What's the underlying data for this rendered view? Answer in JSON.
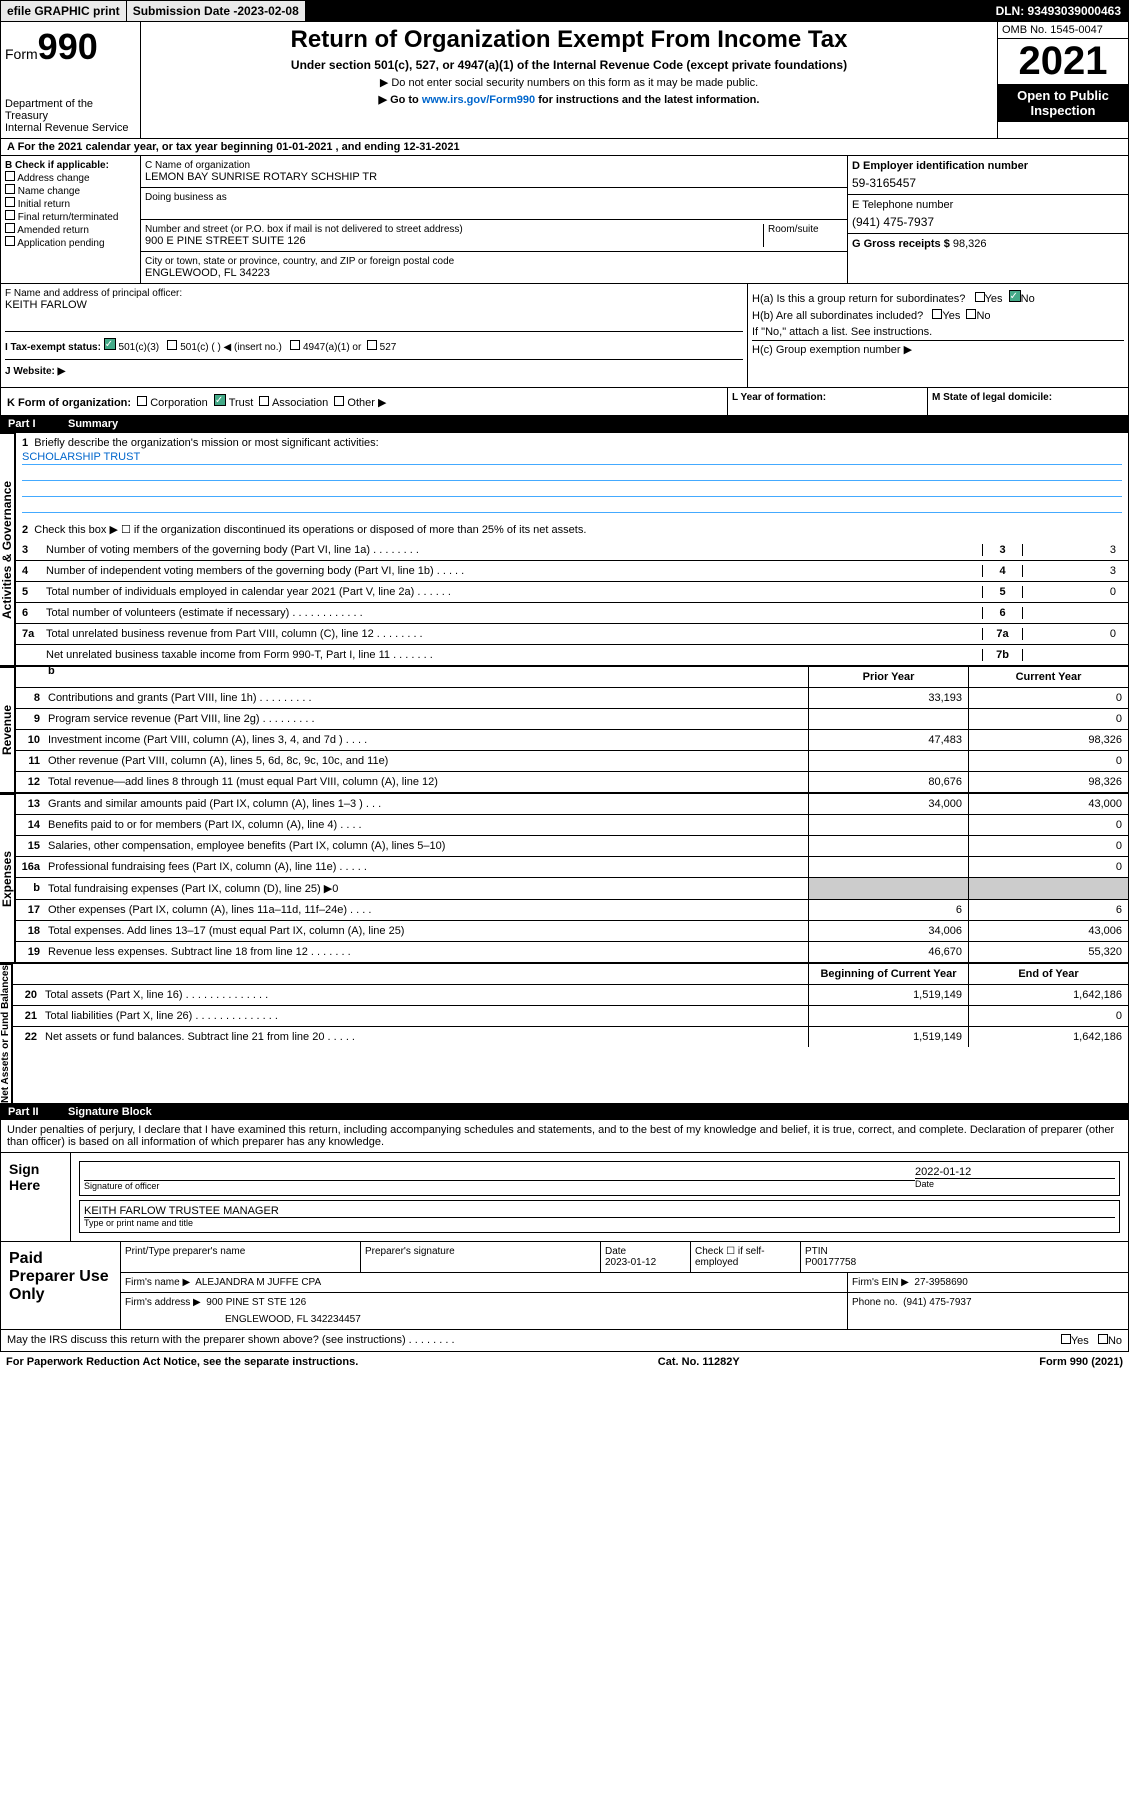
{
  "topbar": {
    "efile": "efile GRAPHIC print",
    "subdate_label": "Submission Date - ",
    "subdate": "2023-02-08",
    "dln": "DLN: 93493039000463"
  },
  "header": {
    "form_prefix": "Form",
    "form_num": "990",
    "dept": "Department of the Treasury",
    "irs": "Internal Revenue Service",
    "title": "Return of Organization Exempt From Income Tax",
    "sub": "Under section 501(c), 527, or 4947(a)(1) of the Internal Revenue Code (except private foundations)",
    "note1": "▶ Do not enter social security numbers on this form as it may be made public.",
    "note2_pre": "▶ Go to ",
    "note2_link": "www.irs.gov/Form990",
    "note2_post": " for instructions and the latest information.",
    "omb": "OMB No. 1545-0047",
    "year": "2021",
    "open": "Open to Public Inspection"
  },
  "a": {
    "text": "A For the 2021 calendar year, or tax year beginning 01-01-2021     , and ending 12-31-2021"
  },
  "b": {
    "label": "B Check if applicable:",
    "items": [
      "Address change",
      "Name change",
      "Initial return",
      "Final return/terminated",
      "Amended return",
      "Application pending"
    ]
  },
  "c": {
    "name_lbl": "C Name of organization",
    "name": "LEMON BAY SUNRISE ROTARY SCHSHIP TR",
    "dba_lbl": "Doing business as",
    "street_lbl": "Number and street (or P.O. box if mail is not delivered to street address)",
    "street": "900 E PINE STREET SUITE 126",
    "room_lbl": "Room/suite",
    "city_lbl": "City or town, state or province, country, and ZIP or foreign postal code",
    "city": "ENGLEWOOD, FL  34223"
  },
  "d": {
    "lbl": "D Employer identification number",
    "val": "59-3165457"
  },
  "e": {
    "lbl": "E Telephone number",
    "val": "(941) 475-7937"
  },
  "g": {
    "lbl": "G Gross receipts $ ",
    "val": "98,326"
  },
  "f": {
    "lbl": "F  Name and address of principal officer:",
    "val": "KEITH FARLOW"
  },
  "h": {
    "ha": "H(a)  Is this a group return for subordinates?",
    "hb": "H(b)  Are all subordinates included?",
    "hb_note": "If \"No,\" attach a list. See instructions.",
    "hc": "H(c)  Group exemption number ▶",
    "yes": "Yes",
    "no": "No"
  },
  "i": {
    "lbl": "I    Tax-exempt status:",
    "o1": "501(c)(3)",
    "o2": "501(c) (    ) ◀ (insert no.)",
    "o3": "4947(a)(1) or",
    "o4": "527"
  },
  "j": {
    "lbl": "J    Website: ▶"
  },
  "k": {
    "lbl": "K Form of organization:",
    "o1": "Corporation",
    "o2": "Trust",
    "o3": "Association",
    "o4": "Other ▶"
  },
  "l": "L Year of formation:",
  "m": "M State of legal domicile:",
  "part1": {
    "num": "Part I",
    "title": "Summary"
  },
  "summary": {
    "q1": "Briefly describe the organization's mission or most significant activities:",
    "mission": "SCHOLARSHIP TRUST",
    "q2": "Check this box ▶ ☐  if the organization discontinued its operations or disposed of more than 25% of its net assets.",
    "rows": [
      {
        "n": "3",
        "t": "Number of voting members of the governing body (Part VI, line 1a)   .    .    .    .    .    .    .    .",
        "b": "3",
        "v": "3"
      },
      {
        "n": "4",
        "t": "Number of independent voting members of the governing body (Part VI, line 1b)   .    .    .    .    .",
        "b": "4",
        "v": "3"
      },
      {
        "n": "5",
        "t": "Total number of individuals employed in calendar year 2021 (Part V, line 2a)   .    .    .    .    .    .",
        "b": "5",
        "v": "0"
      },
      {
        "n": "6",
        "t": "Total number of volunteers (estimate if necessary)   .    .    .    .    .    .    .    .    .    .    .    .",
        "b": "6",
        "v": ""
      },
      {
        "n": "7a",
        "t": "Total unrelated business revenue from Part VIII, column (C), line 12   .    .    .    .    .    .    .    .",
        "b": "7a",
        "v": "0"
      },
      {
        "n": "",
        "t": "Net unrelated business taxable income from Form 990-T, Part I, line 11   .    .    .    .    .    .    .",
        "b": "7b",
        "v": ""
      }
    ]
  },
  "headers": {
    "prior": "Prior Year",
    "current": "Current Year",
    "begin": "Beginning of Current Year",
    "end": "End of Year"
  },
  "revenue": [
    {
      "n": "8",
      "t": "Contributions and grants (Part VIII, line 1h)   .    .    .    .    .    .    .    .    .",
      "p": "33,193",
      "c": "0"
    },
    {
      "n": "9",
      "t": "Program service revenue (Part VIII, line 2g)   .    .    .    .    .    .    .    .    .",
      "p": "",
      "c": "0"
    },
    {
      "n": "10",
      "t": "Investment income (Part VIII, column (A), lines 3, 4, and 7d )    .    .    .    .",
      "p": "47,483",
      "c": "98,326"
    },
    {
      "n": "11",
      "t": "Other revenue (Part VIII, column (A), lines 5, 6d, 8c, 9c, 10c, and 11e)",
      "p": "",
      "c": "0"
    },
    {
      "n": "12",
      "t": "Total revenue—add lines 8 through 11 (must equal Part VIII, column (A), line 12)",
      "p": "80,676",
      "c": "98,326"
    }
  ],
  "expenses": [
    {
      "n": "13",
      "t": "Grants and similar amounts paid (Part IX, column (A), lines 1–3 )   .    .    .",
      "p": "34,000",
      "c": "43,000"
    },
    {
      "n": "14",
      "t": "Benefits paid to or for members (Part IX, column (A), line 4)   .    .    .    .",
      "p": "",
      "c": "0"
    },
    {
      "n": "15",
      "t": "Salaries, other compensation, employee benefits (Part IX, column (A), lines 5–10)",
      "p": "",
      "c": "0"
    },
    {
      "n": "16a",
      "t": "Professional fundraising fees (Part IX, column (A), line 11e)   .    .    .    .    .",
      "p": "",
      "c": "0"
    },
    {
      "n": "b",
      "t": "Total fundraising expenses (Part IX, column (D), line 25) ▶0",
      "p": "",
      "c": "",
      "gray": true
    },
    {
      "n": "17",
      "t": "Other expenses (Part IX, column (A), lines 11a–11d, 11f–24e)   .    .    .    .",
      "p": "6",
      "c": "6"
    },
    {
      "n": "18",
      "t": "Total expenses. Add lines 13–17 (must equal Part IX, column (A), line 25)",
      "p": "34,006",
      "c": "43,006"
    },
    {
      "n": "19",
      "t": "Revenue less expenses. Subtract line 18 from line 12   .    .    .    .    .    .    .",
      "p": "46,670",
      "c": "55,320"
    }
  ],
  "netassets": [
    {
      "n": "20",
      "t": "Total assets (Part X, line 16)   .    .    .    .    .    .    .    .    .    .    .    .    .    .",
      "p": "1,519,149",
      "c": "1,642,186"
    },
    {
      "n": "21",
      "t": "Total liabilities (Part X, line 26)   .    .    .    .    .    .    .    .    .    .    .    .    .    .",
      "p": "",
      "c": "0"
    },
    {
      "n": "22",
      "t": "Net assets or fund balances. Subtract line 21 from line 20   .    .    .    .    .",
      "p": "1,519,149",
      "c": "1,642,186"
    }
  ],
  "part2": {
    "num": "Part II",
    "title": "Signature Block"
  },
  "declare": "Under penalties of perjury, I declare that I have examined this return, including accompanying schedules and statements, and to the best of my knowledge and belief, it is true, correct, and complete. Declaration of preparer (other than officer) is based on all information of which preparer has any knowledge.",
  "sign": {
    "lbl": "Sign Here",
    "sig_lbl": "Signature of officer",
    "date_lbl": "Date",
    "date": "2022-01-12",
    "name": "KEITH FARLOW  TRUSTEE MANAGER",
    "name_lbl": "Type or print name and title"
  },
  "paid": {
    "lbl": "Paid Preparer Use Only",
    "prep_name_lbl": "Print/Type preparer's name",
    "prep_sig_lbl": "Preparer's signature",
    "date_lbl": "Date",
    "date": "2023-01-12",
    "chk_lbl": "Check ☐ if self-employed",
    "ptin_lbl": "PTIN",
    "ptin": "P00177758",
    "firm_name_lbl": "Firm's name      ▶",
    "firm_name": "ALEJANDRA M JUFFE CPA",
    "firm_ein_lbl": "Firm's EIN ▶",
    "firm_ein": "27-3958690",
    "firm_addr_lbl": "Firm's address ▶",
    "firm_addr": "900 PINE ST STE 126",
    "firm_addr2": "ENGLEWOOD, FL  342234457",
    "phone_lbl": "Phone no.",
    "phone": "(941) 475-7937"
  },
  "irs_q": "May the IRS discuss this return with the preparer shown above? (see instructions)   .    .    .    .    .    .    .    .",
  "footer": {
    "l": "For Paperwork Reduction Act Notice, see the separate instructions.",
    "m": "Cat. No. 11282Y",
    "r": "Form 990 (2021)"
  },
  "sidelabels": {
    "gov": "Activities & Governance",
    "rev": "Revenue",
    "exp": "Expenses",
    "net": "Net Assets or Fund Balances"
  }
}
